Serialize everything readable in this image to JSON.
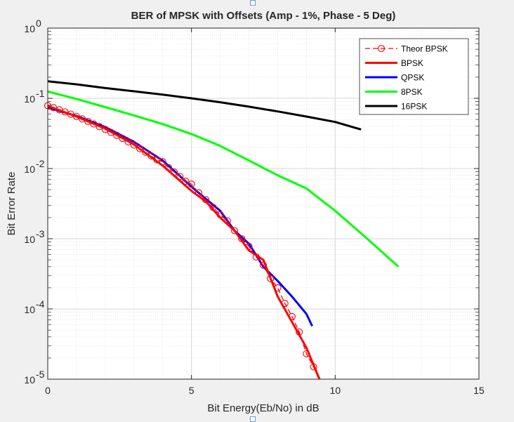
{
  "chart_data": {
    "type": "line",
    "title": "BER of MPSK with Offsets (Amp - 1%, Phase - 5 Deg)",
    "xlabel": "Bit Energy(Eb/No) in dB",
    "ylabel": "Bit Error Rate",
    "xlim": [
      0,
      15
    ],
    "ylim": [
      1e-05,
      1
    ],
    "yscale": "log",
    "grid": true,
    "minor_grid": true,
    "legend_position": "top-right",
    "x_ticks": [
      {
        "value": 0,
        "label": "0"
      },
      {
        "value": 5,
        "label": "5"
      },
      {
        "value": 10,
        "label": "10"
      },
      {
        "value": 15,
        "label": "15"
      }
    ],
    "y_ticks": [
      {
        "value": 1,
        "base": "10",
        "exp": "0"
      },
      {
        "value": 0.1,
        "base": "10",
        "exp": "-1"
      },
      {
        "value": 0.01,
        "base": "10",
        "exp": "-2"
      },
      {
        "value": 0.001,
        "base": "10",
        "exp": "-3"
      },
      {
        "value": 0.0001,
        "base": "10",
        "exp": "-4"
      },
      {
        "value": 1e-05,
        "base": "10",
        "exp": "-5"
      }
    ],
    "series": [
      {
        "name": "Theor BPSK",
        "color": "#ff0000",
        "dashed": true,
        "marker": "circle",
        "x": [
          0,
          0.2,
          0.4,
          0.6,
          0.8,
          1,
          1.2,
          1.4,
          1.6,
          1.8,
          2,
          2.2,
          2.4,
          2.6,
          2.8,
          3,
          3.2,
          3.4,
          3.6,
          3.8,
          4,
          4.2,
          4.4,
          4.6,
          4.8,
          5,
          5.25,
          5.5,
          5.75,
          6,
          6.25,
          6.5,
          6.75,
          7,
          7.25,
          7.5,
          7.75,
          8,
          8.25,
          8.5,
          8.75,
          9,
          9.25,
          9.5
        ],
        "y": [
          0.0786,
          0.0736,
          0.0687,
          0.064,
          0.0594,
          0.0551,
          0.0509,
          0.0469,
          0.0431,
          0.0394,
          0.036,
          0.0327,
          0.0297,
          0.0268,
          0.024,
          0.0216,
          0.0192,
          0.0171,
          0.0151,
          0.0133,
          0.0125,
          0.0103,
          0.0089,
          0.0077,
          0.0066,
          0.006,
          0.0045,
          0.0036,
          0.0028,
          0.0022,
          0.0018,
          0.0013,
          0.001,
          0.00078,
          0.00055,
          0.00042,
          0.00027,
          0.0002,
          0.00012,
          7.8e-05,
          4.7e-05,
          2.3e-05,
          1.5e-05,
          8.5e-06
        ]
      },
      {
        "name": "BPSK",
        "color": "#ff0000",
        "dashed": false,
        "marker": "none",
        "x": [
          0,
          1,
          2,
          3,
          4,
          5,
          5.5,
          6,
          6.5,
          7,
          7.5,
          8,
          8.5,
          9,
          9.5
        ],
        "y": [
          0.078,
          0.055,
          0.037,
          0.022,
          0.011,
          0.0048,
          0.0034,
          0.002,
          0.0013,
          0.00068,
          0.0005,
          0.00015,
          6.5e-05,
          2.8e-05,
          9e-06
        ]
      },
      {
        "name": "QPSK",
        "color": "#0000ff",
        "dashed": false,
        "marker": "none",
        "x": [
          0,
          1,
          2,
          3,
          4,
          4.5,
          5,
          5.5,
          6,
          6.5,
          7,
          7.5,
          8,
          8.5,
          9,
          9.2
        ],
        "y": [
          0.074,
          0.056,
          0.039,
          0.024,
          0.013,
          0.0085,
          0.0055,
          0.0037,
          0.0025,
          0.0013,
          0.00085,
          0.0004,
          0.00025,
          0.00015,
          8.5e-05,
          5.7e-05
        ]
      },
      {
        "name": "8PSK",
        "color": "#00ff00",
        "dashed": false,
        "marker": "none",
        "x": [
          0,
          1,
          2,
          3,
          4,
          5,
          6,
          7,
          8,
          9,
          10,
          11,
          12.2
        ],
        "y": [
          0.125,
          0.098,
          0.075,
          0.057,
          0.043,
          0.031,
          0.021,
          0.013,
          0.008,
          0.0052,
          0.0025,
          0.0011,
          0.0004
        ]
      },
      {
        "name": "16PSK",
        "color": "#000000",
        "dashed": false,
        "marker": "none",
        "x": [
          0,
          1,
          2,
          3,
          4,
          5,
          6,
          7,
          8,
          9,
          10,
          10.9
        ],
        "y": [
          0.175,
          0.158,
          0.14,
          0.126,
          0.113,
          0.1,
          0.088,
          0.076,
          0.065,
          0.055,
          0.046,
          0.036
        ]
      }
    ]
  }
}
